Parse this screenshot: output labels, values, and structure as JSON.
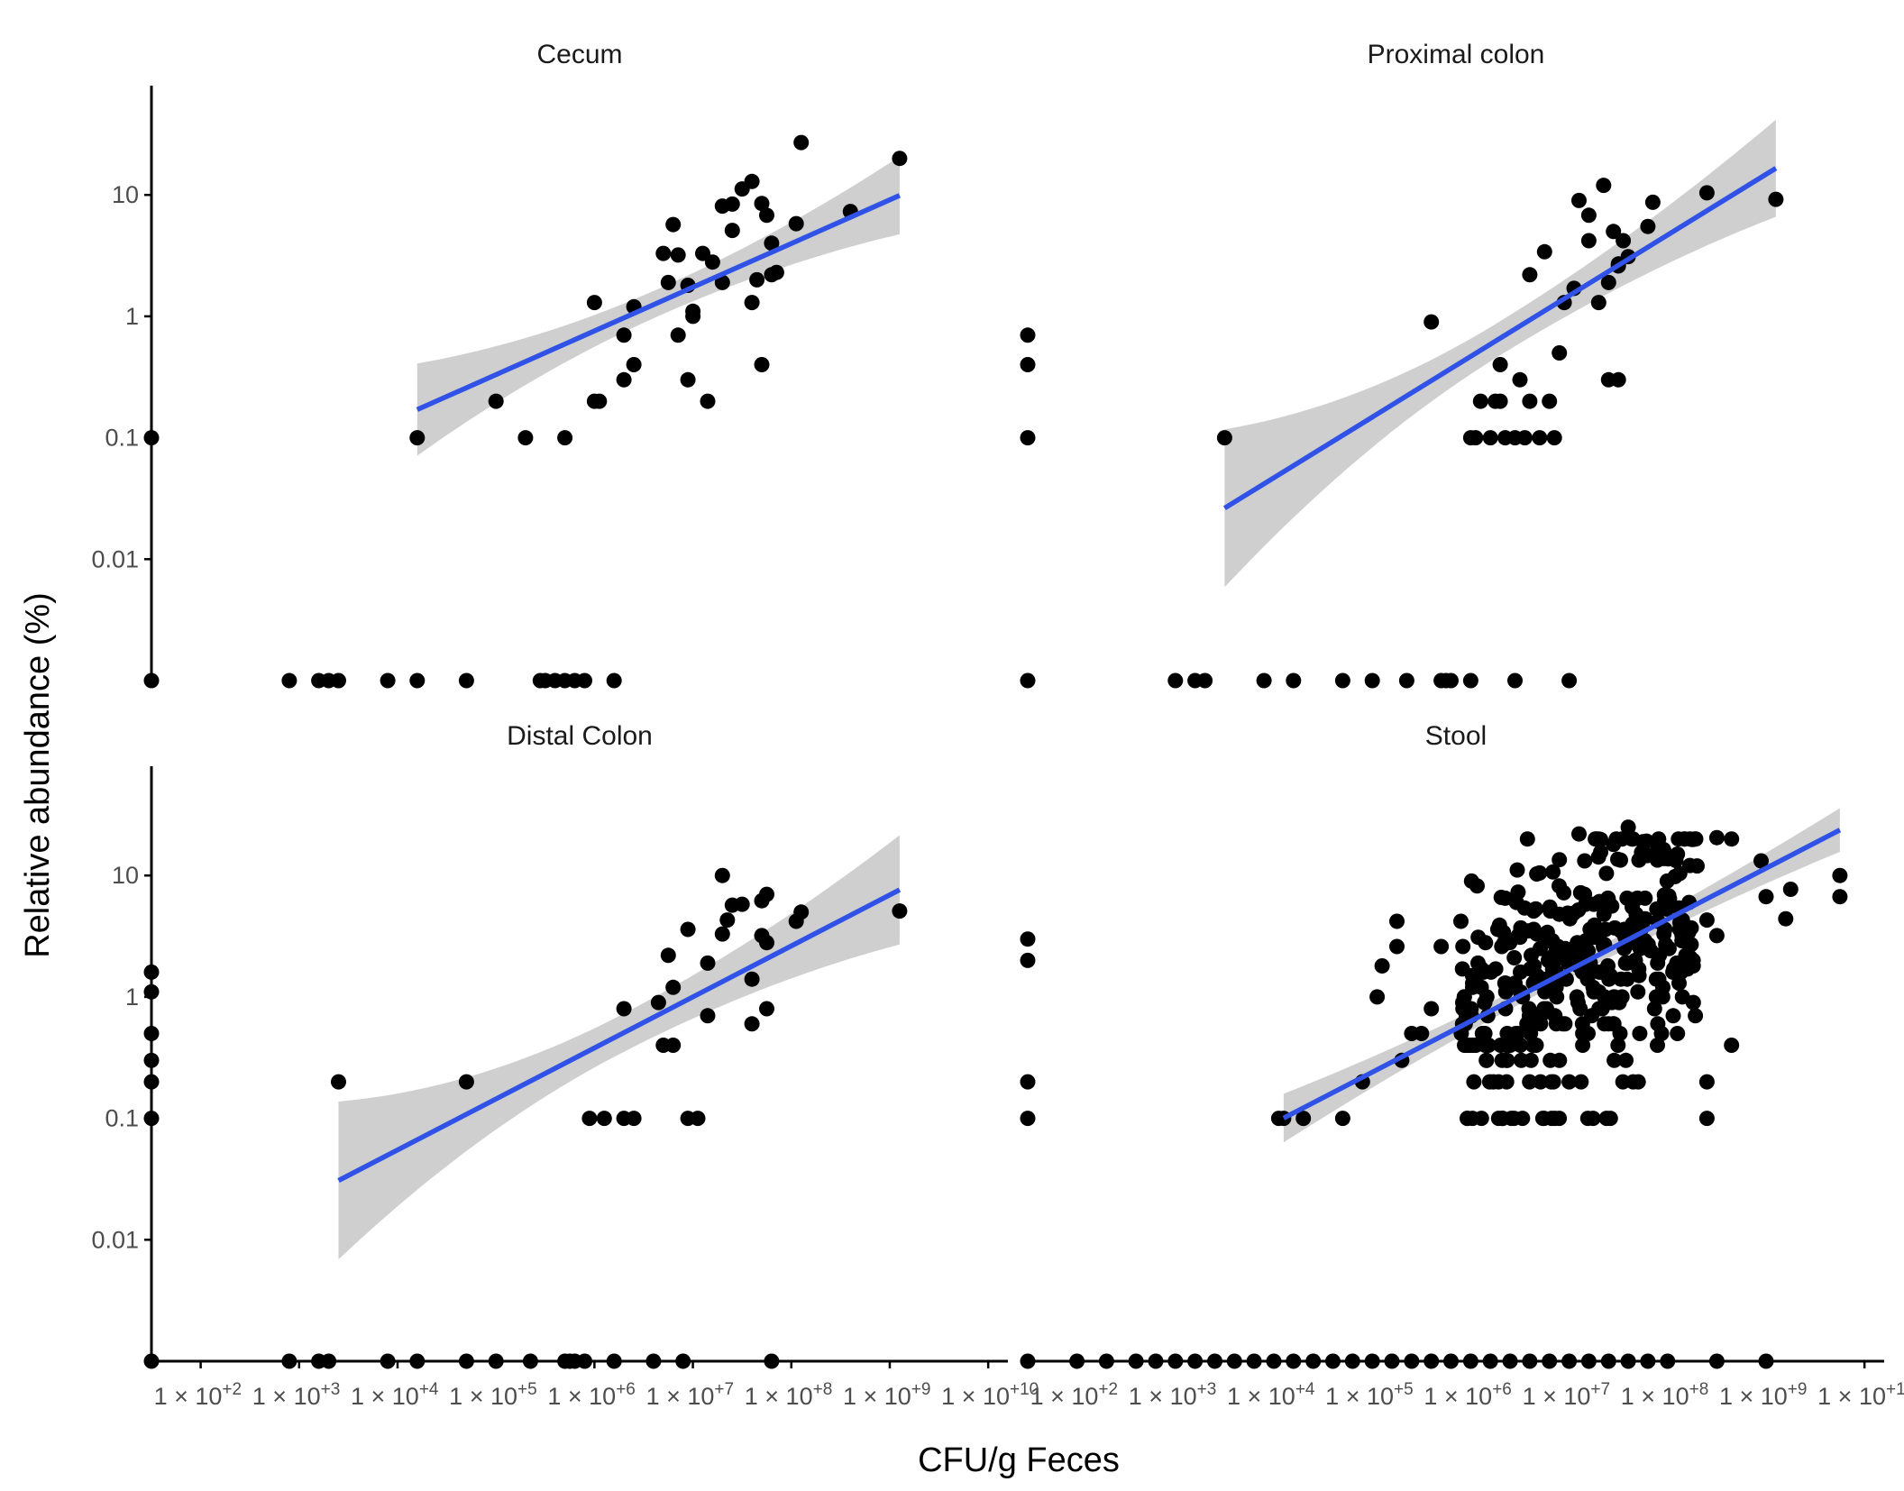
{
  "chart_data": {
    "type": "scatter",
    "facet_layout": "2x2",
    "xlabel": "CFU/g Feces",
    "ylabel": "Relative abundance (%)",
    "x_scale": "log10",
    "y_scale": "log10",
    "xlim_log10": [
      1.5,
      10.2
    ],
    "ylim_log10": [
      -3,
      1.9
    ],
    "x_ticks": [
      {
        "exp": 2,
        "label": "1 × 10",
        "sup": "+2"
      },
      {
        "exp": 3,
        "label": "1 × 10",
        "sup": "+3"
      },
      {
        "exp": 4,
        "label": "1 × 10",
        "sup": "+4"
      },
      {
        "exp": 5,
        "label": "1 × 10",
        "sup": "+5"
      },
      {
        "exp": 6,
        "label": "1 × 10",
        "sup": "+6"
      },
      {
        "exp": 7,
        "label": "1 × 10",
        "sup": "+7"
      },
      {
        "exp": 8,
        "label": "1 × 10",
        "sup": "+8"
      },
      {
        "exp": 9,
        "label": "1 × 10",
        "sup": "+9"
      },
      {
        "exp": 10,
        "label": "1 × 10",
        "sup": "+10"
      }
    ],
    "y_ticks": [
      {
        "value": 10,
        "label": "10"
      },
      {
        "value": 1,
        "label": "1"
      },
      {
        "value": 0.1,
        "label": "0.1"
      },
      {
        "value": 0.01,
        "label": "0.01"
      }
    ],
    "colors": {
      "points": "#000000",
      "fit_line": "#3152e6",
      "ci_band": "#cccccc",
      "axis": "#000000"
    },
    "grid": false,
    "legend": "none",
    "panels": [
      {
        "title": "Cecum",
        "fit": {
          "x_range": [
            4.2,
            9.1
          ],
          "intercept": -2.28,
          "slope": 0.36,
          "ci_start": 0.38,
          "ci_end": 0.32
        },
        "points": [
          [
            4.2,
            0.1
          ],
          [
            5.0,
            0.2
          ],
          [
            5.3,
            0.1
          ],
          [
            5.7,
            0.1
          ],
          [
            6.0,
            1.3
          ],
          [
            6.0,
            0.2
          ],
          [
            6.05,
            0.2
          ],
          [
            6.3,
            0.7
          ],
          [
            6.4,
            1.2
          ],
          [
            6.4,
            0.4
          ],
          [
            6.3,
            0.3
          ],
          [
            6.7,
            3.3
          ],
          [
            6.75,
            1.9
          ],
          [
            6.8,
            5.7
          ],
          [
            6.85,
            3.2
          ],
          [
            6.85,
            0.7
          ],
          [
            6.95,
            1.8
          ],
          [
            6.95,
            0.3
          ],
          [
            7.0,
            1.0
          ],
          [
            7.0,
            1.1
          ],
          [
            7.1,
            3.3
          ],
          [
            7.2,
            2.8
          ],
          [
            7.15,
            0.2
          ],
          [
            7.3,
            1.9
          ],
          [
            7.3,
            8.1
          ],
          [
            7.4,
            8.4
          ],
          [
            7.4,
            5.1
          ],
          [
            7.5,
            11.2
          ],
          [
            7.6,
            12.9
          ],
          [
            7.6,
            1.3
          ],
          [
            7.65,
            2.0
          ],
          [
            7.7,
            8.5
          ],
          [
            7.7,
            0.4
          ],
          [
            7.75,
            6.8
          ],
          [
            7.8,
            2.2
          ],
          [
            7.8,
            4.0
          ],
          [
            7.85,
            2.3
          ],
          [
            8.05,
            5.8
          ],
          [
            8.1,
            27.0
          ],
          [
            8.6,
            7.3
          ],
          [
            9.1,
            20.0
          ],
          [
            1.5,
            0.1
          ]
        ],
        "zero_points": [
          1.5,
          2.9,
          3.2,
          3.3,
          3.4,
          3.9,
          4.2,
          4.7,
          5.45,
          5.5,
          5.6,
          5.7,
          5.8,
          5.9,
          6.2
        ]
      },
      {
        "title": "Proximal colon",
        "fit": {
          "x_range": [
            3.5,
            9.1
          ],
          "intercept": -3.33,
          "slope": 0.5,
          "ci_start": 0.65,
          "ci_end": 0.4
        },
        "points": [
          [
            1.5,
            0.7
          ],
          [
            1.5,
            0.4
          ],
          [
            1.5,
            0.1
          ],
          [
            3.5,
            0.1
          ],
          [
            5.6,
            0.9
          ],
          [
            6.0,
            0.1
          ],
          [
            6.05,
            0.1
          ],
          [
            6.1,
            0.2
          ],
          [
            6.2,
            0.1
          ],
          [
            6.25,
            0.2
          ],
          [
            6.3,
            0.4
          ],
          [
            6.3,
            0.2
          ],
          [
            6.35,
            0.1
          ],
          [
            6.45,
            0.1
          ],
          [
            6.5,
            0.3
          ],
          [
            6.55,
            0.1
          ],
          [
            6.6,
            2.2
          ],
          [
            6.6,
            0.2
          ],
          [
            6.7,
            0.1
          ],
          [
            6.75,
            3.4
          ],
          [
            6.8,
            0.2
          ],
          [
            6.85,
            0.1
          ],
          [
            6.9,
            0.5
          ],
          [
            6.95,
            1.3
          ],
          [
            7.05,
            1.7
          ],
          [
            7.1,
            9.0
          ],
          [
            7.2,
            4.2
          ],
          [
            7.2,
            6.8
          ],
          [
            7.3,
            1.3
          ],
          [
            7.35,
            12.0
          ],
          [
            7.4,
            0.3
          ],
          [
            7.4,
            1.9
          ],
          [
            7.5,
            0.3
          ],
          [
            7.45,
            5.0
          ],
          [
            7.5,
            2.7
          ],
          [
            7.55,
            4.2
          ],
          [
            7.6,
            3.1
          ],
          [
            7.5,
            2.6
          ],
          [
            7.8,
            5.5
          ],
          [
            7.85,
            8.7
          ],
          [
            8.4,
            10.4
          ],
          [
            9.1,
            9.2
          ]
        ],
        "zero_points": [
          1.5,
          3.0,
          3.2,
          3.3,
          3.9,
          4.2,
          4.7,
          5.0,
          5.35,
          5.7,
          5.75,
          5.8,
          6.0,
          6.45,
          7.0
        ]
      },
      {
        "title": "Distal Colon",
        "fit": {
          "x_range": [
            3.4,
            9.1
          ],
          "intercept": -2.94,
          "slope": 0.42,
          "ci_start": 0.65,
          "ci_end": 0.45
        },
        "points": [
          [
            1.5,
            1.6
          ],
          [
            1.5,
            1.1
          ],
          [
            1.5,
            0.5
          ],
          [
            1.5,
            0.3
          ],
          [
            1.5,
            0.2
          ],
          [
            1.5,
            0.1
          ],
          [
            3.4,
            0.2
          ],
          [
            4.7,
            0.2
          ],
          [
            5.95,
            0.1
          ],
          [
            6.1,
            0.1
          ],
          [
            6.3,
            0.1
          ],
          [
            6.3,
            0.8
          ],
          [
            6.4,
            0.1
          ],
          [
            6.65,
            0.9
          ],
          [
            6.7,
            0.4
          ],
          [
            6.75,
            2.2
          ],
          [
            6.8,
            1.2
          ],
          [
            6.8,
            0.4
          ],
          [
            6.95,
            3.6
          ],
          [
            6.95,
            0.1
          ],
          [
            7.05,
            0.1
          ],
          [
            7.15,
            1.9
          ],
          [
            7.15,
            0.7
          ],
          [
            7.3,
            3.3
          ],
          [
            7.3,
            10.0
          ],
          [
            7.35,
            4.3
          ],
          [
            7.4,
            5.7
          ],
          [
            7.5,
            5.8
          ],
          [
            7.6,
            0.6
          ],
          [
            7.6,
            1.4
          ],
          [
            7.7,
            3.2
          ],
          [
            7.7,
            6.2
          ],
          [
            7.75,
            7.0
          ],
          [
            7.75,
            2.8
          ],
          [
            7.75,
            0.8
          ],
          [
            8.05,
            4.2
          ],
          [
            8.1,
            5.0
          ],
          [
            9.1,
            5.1
          ]
        ],
        "zero_points": [
          1.5,
          2.9,
          3.2,
          3.3,
          3.9,
          4.2,
          4.7,
          5.0,
          5.35,
          5.7,
          5.75,
          5.8,
          5.9,
          6.2,
          6.6,
          6.9,
          7.8
        ]
      },
      {
        "title": "Stool",
        "fit": {
          "x_range": [
            4.1,
            9.75
          ],
          "intercept": -2.72,
          "slope": 0.42,
          "ci_start": 0.2,
          "ci_end": 0.18
        },
        "points": [
          [
            1.5,
            3.0
          ],
          [
            1.5,
            2.0
          ],
          [
            1.5,
            0.2
          ],
          [
            1.5,
            0.1
          ],
          [
            4.05,
            0.1
          ],
          [
            4.1,
            0.1
          ],
          [
            4.3,
            0.1
          ],
          [
            4.7,
            0.1
          ],
          [
            4.9,
            0.2
          ],
          [
            5.05,
            1.0
          ],
          [
            5.1,
            1.8
          ],
          [
            5.25,
            4.2
          ],
          [
            5.25,
            2.6
          ],
          [
            5.3,
            0.3
          ],
          [
            5.4,
            0.5
          ],
          [
            5.5,
            0.5
          ],
          [
            5.6,
            0.8
          ],
          [
            5.7,
            2.6
          ],
          [
            5.9,
            4.2
          ],
          [
            6.15,
            2.8
          ],
          [
            6.35,
            6.5
          ],
          [
            6.5,
            3.1
          ],
          [
            6.7,
            10.5
          ],
          [
            6.9,
            13.5
          ],
          [
            7.1,
            22.0
          ],
          [
            7.3,
            20.0
          ],
          [
            7.45,
            18.0
          ],
          [
            7.6,
            25.0
          ],
          [
            7.75,
            19.0
          ],
          [
            7.9,
            17.0
          ],
          [
            8.1,
            15.0
          ],
          [
            8.3,
            12.0
          ],
          [
            8.5,
            20.5
          ],
          [
            8.65,
            20.0
          ],
          [
            8.4,
            4.3
          ],
          [
            8.5,
            3.2
          ],
          [
            8.95,
            13.2
          ],
          [
            9.0,
            6.7
          ],
          [
            9.2,
            4.4
          ],
          [
            9.25,
            7.7
          ],
          [
            9.75,
            10.0
          ],
          [
            9.75,
            6.7
          ],
          [
            8.65,
            0.4
          ],
          [
            8.4,
            0.2
          ],
          [
            8.4,
            0.1
          ],
          [
            7.9,
            0.6
          ],
          [
            8.1,
            0.5
          ]
        ],
        "dense_cloud": {
          "x_range": [
            5.9,
            8.3
          ],
          "count": 360,
          "seed": 7
        },
        "zero_points": [
          1.5,
          2.0,
          2.3,
          2.6,
          2.8,
          3.0,
          3.2,
          3.4,
          3.6,
          3.8,
          4.0,
          4.2,
          4.4,
          4.6,
          4.8,
          5.0,
          5.2,
          5.4,
          5.6,
          5.8,
          6.0,
          6.2,
          6.4,
          6.6,
          6.8,
          7.0,
          7.2,
          7.4,
          7.6,
          7.8,
          8.0,
          8.5,
          9.0
        ]
      }
    ]
  }
}
